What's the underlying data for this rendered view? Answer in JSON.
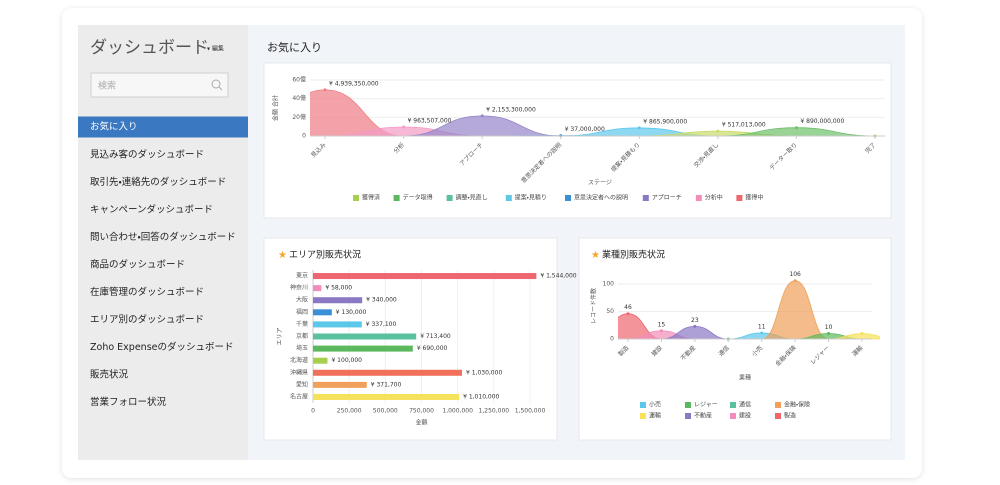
{
  "sidebar": {
    "title": "ダッシュボード",
    "edit": "▾ 編集",
    "search_placeholder": "検索",
    "selected": 0,
    "items": [
      "お気に入り",
      "見込み客のダッシュボード",
      "取引先・連絡先のダッシュボード",
      "キャンペーンダッシュボード",
      "問い合わせ・回答のダッシュボード",
      "商品のダッシュボード",
      "在庫管理のダッシュボード",
      "エリア別のダッシュボード",
      "Zoho Expenseのダッシュボード",
      "販売状況",
      "営業フォロー状況"
    ]
  },
  "main": {
    "title": "お気に入り"
  },
  "chart_data": [
    {
      "type": "area",
      "x_label": "ステージ",
      "y_label": "金額 合計",
      "categories": [
        "見込み",
        "分析",
        "アプローチ",
        "意思決定者への説明",
        "提案・見積もり",
        "交渉・見直し",
        "データー取り",
        "完了"
      ],
      "values": [
        4939350000,
        963507000,
        2153300000,
        37000000,
        865900000,
        517013000,
        890000000,
        0
      ],
      "value_labels": [
        "¥ 4,939,350,000",
        "¥ 963,507,000",
        "¥ 2,153,300,000",
        "¥ 37,000,000",
        "¥ 865,900,000",
        "¥ 517,013,000",
        "¥ 890,000,000",
        null
      ],
      "colors": [
        "#f07a84",
        "#f39ac4",
        "#9585c9",
        "#4b93d8",
        "#5ec8ec",
        "#c9dc6a",
        "#6fc06a",
        "#a5cf4c"
      ],
      "ylim": [
        0,
        6000000000
      ],
      "yticks": [
        {
          "value": 0,
          "label": "0"
        },
        {
          "value": 2000000000,
          "label": "20億"
        },
        {
          "value": 4000000000,
          "label": "40億"
        },
        {
          "value": 6000000000,
          "label": "60億"
        }
      ],
      "legend": [
        {
          "name": "獲得済",
          "color": "#a5cf4c"
        },
        {
          "name": "データ取得",
          "color": "#5cb85c"
        },
        {
          "name": "調整・見直し",
          "color": "#5bc0a0"
        },
        {
          "name": "提案・見積り",
          "color": "#5bc8ea"
        },
        {
          "name": "意思決定者への説明",
          "color": "#3a8fd6"
        },
        {
          "name": "アプローチ",
          "color": "#8a78c4"
        },
        {
          "name": "分析中",
          "color": "#f28cb8"
        },
        {
          "name": "獲得中",
          "color": "#ee6670"
        }
      ]
    },
    {
      "type": "hbar",
      "title": "エリア別販売状況",
      "x_label": "金額",
      "y_label": "エリア",
      "categories": [
        "東京",
        "神奈川",
        "大阪",
        "福岡",
        "千葉",
        "京都",
        "埼玉",
        "北海道",
        "沖縄県",
        "愛知",
        "名古屋"
      ],
      "values": [
        1544000,
        58000,
        340000,
        130000,
        337100,
        713400,
        690000,
        100000,
        1030000,
        371700,
        1010000
      ],
      "value_labels": [
        "¥ 1,544,000",
        "¥ 58,000",
        "¥ 340,000",
        "¥ 130,000",
        "¥ 337,100",
        "¥ 713,400",
        "¥ 690,000",
        "¥ 100,000",
        "¥ 1,030,000",
        "¥ 371,700",
        "¥ 1,010,000"
      ],
      "colors": [
        "#ee6670",
        "#f28cb8",
        "#8a78c4",
        "#3a8fd6",
        "#5bc8ea",
        "#5bc0a0",
        "#5cb85c",
        "#a5cf4c",
        "#f0705a",
        "#f0a05a",
        "#f5e15a"
      ],
      "xlim": [
        0,
        1500000
      ],
      "xticks": [
        0,
        {
          "value": 250000,
          "label": "250,000"
        },
        {
          "value": 500000,
          "label": "500,000"
        },
        {
          "value": 750000,
          "label": "750,000"
        },
        {
          "value": 1000000,
          "label": "1,000,000"
        },
        {
          "value": 1250000,
          "label": "1,250,000"
        },
        {
          "value": 1500000,
          "label": "1,500,000"
        }
      ]
    },
    {
      "type": "area",
      "title": "業種別販売状況",
      "x_label": "業種",
      "y_label": "レコード件数",
      "categories": [
        "製造",
        "建設",
        "不動産",
        "通信",
        "小売",
        "金融・保険",
        "レジャー",
        "運輸"
      ],
      "values": [
        46,
        15,
        23,
        0,
        11,
        106,
        10,
        10
      ],
      "value_labels": [
        "46",
        "15",
        "23",
        null,
        "11",
        "106",
        "10",
        null
      ],
      "colors": [
        "#ee6670",
        "#f28cb8",
        "#8a78c4",
        "#5bc0a0",
        "#5bc8ea",
        "#f0a05a",
        "#5cb85c",
        "#f5e15a"
      ],
      "ylim": [
        0,
        120
      ],
      "yticks": [
        0,
        50,
        100
      ],
      "legend": [
        {
          "name": "小売",
          "color": "#5bc8ea"
        },
        {
          "name": "レジャー",
          "color": "#5cb85c"
        },
        {
          "name": "通信",
          "color": "#5bc0a0"
        },
        {
          "name": "金融・保険",
          "color": "#f0a05a"
        },
        {
          "name": "運輸",
          "color": "#f5e15a"
        },
        {
          "name": "不動産",
          "color": "#8a78c4"
        },
        {
          "name": "建設",
          "color": "#f28cb8"
        },
        {
          "name": "製造",
          "color": "#ee6670"
        }
      ]
    }
  ]
}
